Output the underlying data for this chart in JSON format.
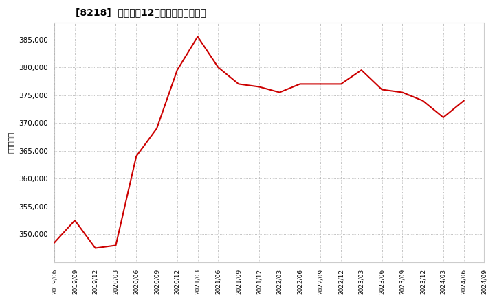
{
  "title": "[8218]  売上高の12か月移動合計の推移",
  "ylabel": "（百万円）",
  "line_color": "#cc0000",
  "bg_color": "#ffffff",
  "plot_bg_color": "#ffffff",
  "grid_color": "#aaaaaa",
  "dates": [
    "2019/06",
    "2019/09",
    "2019/12",
    "2020/03",
    "2020/06",
    "2020/09",
    "2020/12",
    "2021/03",
    "2021/06",
    "2021/09",
    "2021/12",
    "2022/03",
    "2022/06",
    "2022/09",
    "2022/12",
    "2023/03",
    "2023/06",
    "2023/09",
    "2023/12",
    "2024/03",
    "2024/06"
  ],
  "values": [
    348500,
    352500,
    347500,
    348000,
    364000,
    369000,
    379500,
    385500,
    380000,
    377000,
    376500,
    375500,
    377000,
    377000,
    377000,
    379500,
    376000,
    375500,
    374000,
    371000,
    374000
  ],
  "xtick_labels": [
    "2019/06",
    "2019/09",
    "2019/12",
    "2020/03",
    "2020/06",
    "2020/09",
    "2020/12",
    "2021/03",
    "2021/06",
    "2021/09",
    "2021/12",
    "2022/03",
    "2022/06",
    "2022/09",
    "2022/12",
    "2023/03",
    "2023/06",
    "2023/09",
    "2023/12",
    "2024/03",
    "2024/06",
    "2024/09"
  ],
  "ylim_min": 345000,
  "ylim_max": 388000,
  "ytick_values": [
    350000,
    355000,
    360000,
    365000,
    370000,
    375000,
    380000,
    385000
  ]
}
